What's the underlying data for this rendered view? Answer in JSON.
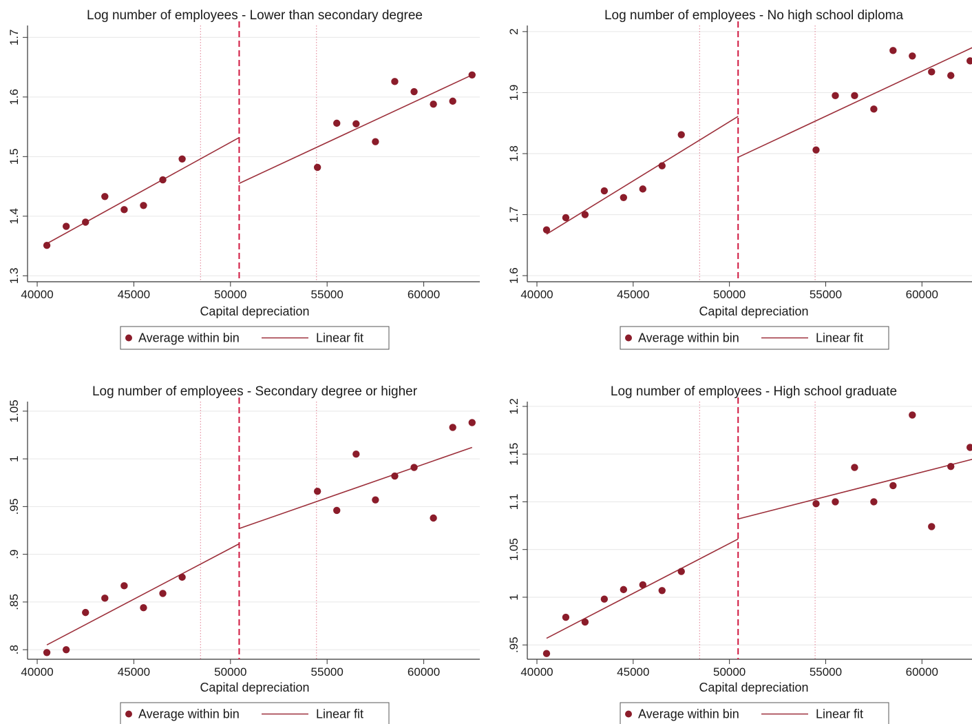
{
  "colors": {
    "marker": "#8b1c2a",
    "fit": "#9c2f3a",
    "cutoff": "#d0173f",
    "band": "#e07a8e",
    "grid": "#e6e6e6",
    "axis": "#333333"
  },
  "legend": {
    "items": [
      {
        "label": "Average within bin",
        "symbol": "circle-marker"
      },
      {
        "label": "Linear fit",
        "symbol": "line"
      }
    ]
  },
  "chart_data": [
    {
      "type": "scatter",
      "title": "Log number of employees - Lower than secondary degree",
      "xlabel": "Capital depreciation",
      "ylabel": "",
      "xlim": [
        39500,
        62900
      ],
      "ylim": [
        1.29,
        1.72
      ],
      "xticks": [
        "40000",
        "45000",
        "50000",
        "55000",
        "60000"
      ],
      "yticks": [
        "1.3",
        "1.4",
        "1.5",
        "1.6",
        "1.7"
      ],
      "cutoff": 50450,
      "bandwidth_lines": [
        48450,
        54450
      ],
      "points": [
        [
          40500,
          1.351
        ],
        [
          41500,
          1.383
        ],
        [
          42500,
          1.39
        ],
        [
          43500,
          1.433
        ],
        [
          44500,
          1.411
        ],
        [
          45500,
          1.418
        ],
        [
          46500,
          1.461
        ],
        [
          47500,
          1.496
        ],
        [
          54500,
          1.482
        ],
        [
          55500,
          1.556
        ],
        [
          56500,
          1.555
        ],
        [
          57500,
          1.525
        ],
        [
          58500,
          1.626
        ],
        [
          59500,
          1.609
        ],
        [
          60500,
          1.588
        ],
        [
          61500,
          1.593
        ],
        [
          62500,
          1.637
        ]
      ],
      "fit_left": [
        [
          40500,
          1.354
        ],
        [
          50450,
          1.532
        ]
      ],
      "fit_right": [
        [
          50450,
          1.455
        ],
        [
          62500,
          1.637
        ]
      ],
      "grid": true,
      "legend": "bottom"
    },
    {
      "type": "scatter",
      "title": "Log number of employees - No high school diploma",
      "xlabel": "Capital depreciation",
      "ylabel": "",
      "xlim": [
        39500,
        62600
      ],
      "ylim": [
        1.59,
        2.01
      ],
      "xticks": [
        "40000",
        "45000",
        "50000",
        "55000",
        "60000"
      ],
      "yticks": [
        "1.6",
        "1.7",
        "1.8",
        "1.9",
        "2"
      ],
      "cutoff": 50450,
      "bandwidth_lines": [
        48450,
        54450
      ],
      "points": [
        [
          40500,
          1.675
        ],
        [
          41500,
          1.695
        ],
        [
          42500,
          1.7
        ],
        [
          43500,
          1.739
        ],
        [
          44500,
          1.728
        ],
        [
          45500,
          1.742
        ],
        [
          46500,
          1.78
        ],
        [
          47500,
          1.831
        ],
        [
          54500,
          1.806
        ],
        [
          55500,
          1.895
        ],
        [
          56500,
          1.895
        ],
        [
          57500,
          1.873
        ],
        [
          58500,
          1.969
        ],
        [
          59500,
          1.96
        ],
        [
          60500,
          1.934
        ],
        [
          61500,
          1.928
        ],
        [
          62500,
          1.952
        ]
      ],
      "fit_left": [
        [
          40500,
          1.668
        ],
        [
          50450,
          1.861
        ]
      ],
      "fit_right": [
        [
          50450,
          1.794
        ],
        [
          62700,
          1.975
        ]
      ],
      "grid": true,
      "legend": "bottom"
    },
    {
      "type": "scatter",
      "title": "Log number of employees - Secondary degree or higher",
      "xlabel": "Capital depreciation",
      "ylabel": "",
      "xlim": [
        39500,
        62900
      ],
      "ylim": [
        0.79,
        1.06
      ],
      "xticks": [
        "40000",
        "45000",
        "50000",
        "55000",
        "60000"
      ],
      "yticks": [
        ".8",
        ".85",
        ".9",
        ".95",
        "1",
        "1.05"
      ],
      "cutoff": 50450,
      "bandwidth_lines": [
        48450,
        54450
      ],
      "points": [
        [
          40500,
          0.797
        ],
        [
          41500,
          0.8
        ],
        [
          42500,
          0.839
        ],
        [
          43500,
          0.854
        ],
        [
          44500,
          0.867
        ],
        [
          45500,
          0.844
        ],
        [
          46500,
          0.859
        ],
        [
          47500,
          0.876
        ],
        [
          54500,
          0.966
        ],
        [
          55500,
          0.946
        ],
        [
          56500,
          1.005
        ],
        [
          57500,
          0.957
        ],
        [
          58500,
          0.982
        ],
        [
          59500,
          0.991
        ],
        [
          60500,
          0.938
        ],
        [
          61500,
          1.033
        ],
        [
          62500,
          1.038
        ]
      ],
      "fit_left": [
        [
          40500,
          0.805
        ],
        [
          50450,
          0.911
        ]
      ],
      "fit_right": [
        [
          50450,
          0.927
        ],
        [
          62500,
          1.012
        ]
      ],
      "grid": true,
      "legend": "bottom"
    },
    {
      "type": "scatter",
      "title": "Log number of employees - High school graduate",
      "xlabel": "Capital depreciation",
      "ylabel": "",
      "xlim": [
        39500,
        62600
      ],
      "ylim": [
        0.935,
        1.205
      ],
      "xticks": [
        "40000",
        "45000",
        "50000",
        "55000",
        "60000"
      ],
      "yticks": [
        ".95",
        "1",
        "1.05",
        "1.1",
        "1.15",
        "1.2"
      ],
      "cutoff": 50450,
      "bandwidth_lines": [
        48450,
        54450
      ],
      "points": [
        [
          40500,
          0.941
        ],
        [
          41500,
          0.979
        ],
        [
          42500,
          0.974
        ],
        [
          43500,
          0.998
        ],
        [
          44500,
          1.008
        ],
        [
          45500,
          1.013
        ],
        [
          46500,
          1.007
        ],
        [
          47500,
          1.027
        ],
        [
          54500,
          1.098
        ],
        [
          55500,
          1.1
        ],
        [
          56500,
          1.136
        ],
        [
          57500,
          1.1
        ],
        [
          58500,
          1.117
        ],
        [
          59500,
          1.191
        ],
        [
          60500,
          1.074
        ],
        [
          61500,
          1.137
        ],
        [
          62500,
          1.157
        ]
      ],
      "fit_left": [
        [
          40500,
          0.957
        ],
        [
          50450,
          1.061
        ]
      ],
      "fit_right": [
        [
          50450,
          1.082
        ],
        [
          62700,
          1.145
        ]
      ],
      "grid": true,
      "legend": "bottom"
    }
  ]
}
